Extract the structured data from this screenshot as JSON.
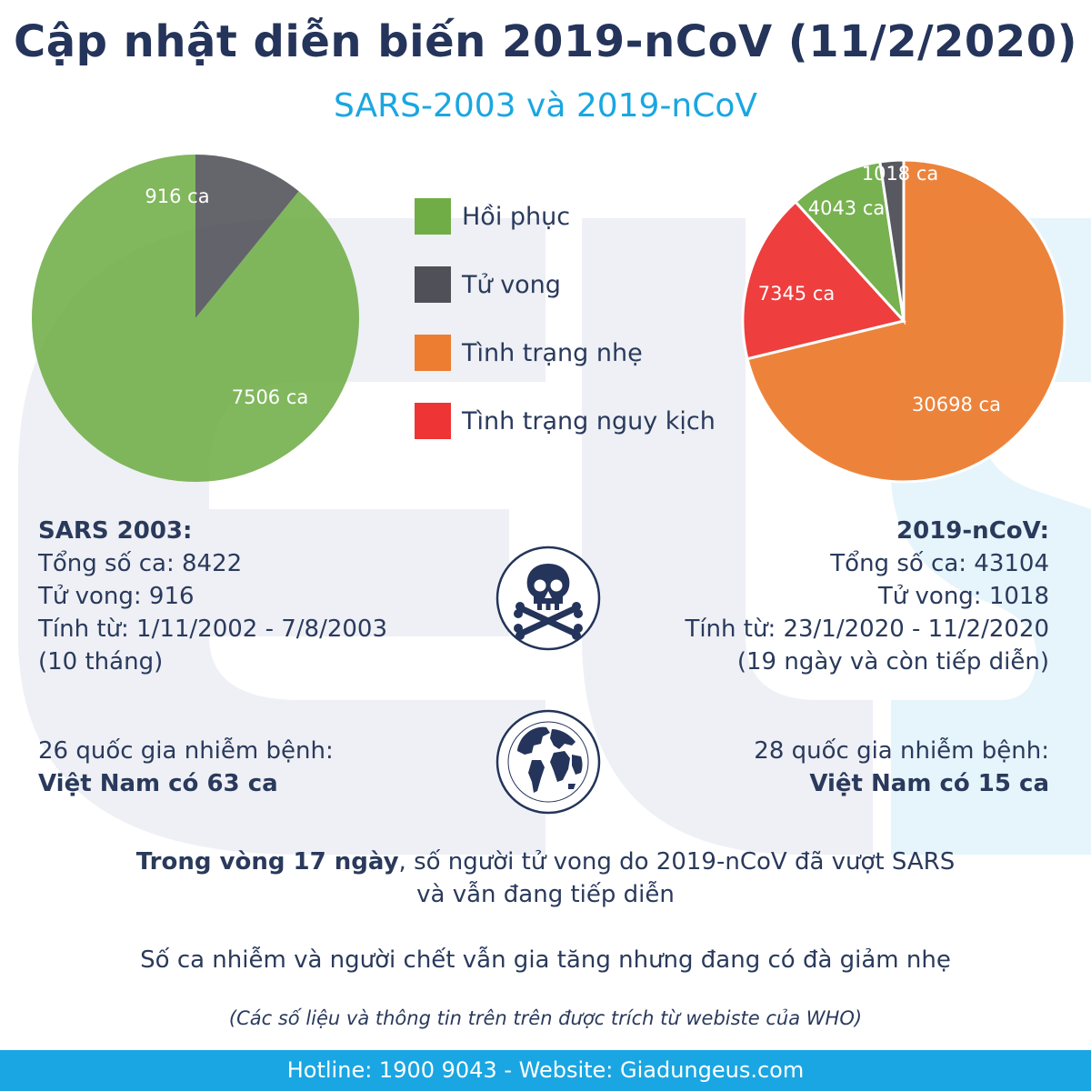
{
  "header": {
    "title": "Cập nhật diễn biến 2019-nCoV (11/2/2020)",
    "subtitle": "SARS-2003 và 2019-nCoV"
  },
  "legend": [
    {
      "label": "Hồi phục",
      "color": "#70ad47"
    },
    {
      "label": "Tử vong",
      "color": "#505058"
    },
    {
      "label": "Tình trạng nhẹ",
      "color": "#ed7d31"
    },
    {
      "label": "Tình trạng nguy kịch",
      "color": "#ee3434"
    }
  ],
  "chart_data": [
    {
      "type": "pie",
      "name": "SARS 2003",
      "slices": [
        {
          "label": "916 ca",
          "value": 916,
          "category": "Tử vong",
          "color": "#505058"
        },
        {
          "label": "7506 ca",
          "value": 7506,
          "category": "Hồi phục",
          "color": "#70ad47"
        }
      ]
    },
    {
      "type": "pie",
      "name": "2019-nCoV",
      "slices": [
        {
          "label": "30698 ca",
          "value": 30698,
          "category": "Tình trạng nhẹ",
          "color": "#ed7d31"
        },
        {
          "label": "7345 ca",
          "value": 7345,
          "category": "Tình trạng nguy kịch",
          "color": "#ee3434"
        },
        {
          "label": "4043 ca",
          "value": 4043,
          "category": "Hồi phục",
          "color": "#70ad47"
        },
        {
          "label": "1018 ca",
          "value": 1018,
          "category": "Tử vong",
          "color": "#505058"
        }
      ]
    }
  ],
  "sars": {
    "heading": "SARS 2003:",
    "total": "Tổng số ca: 8422",
    "deaths": "Tử vong: 916",
    "period": "Tính từ: 1/11/2002 - 7/8/2003",
    "duration": "(10 tháng)",
    "countries": "26 quốc gia nhiễm bệnh:",
    "vietnam": "Việt Nam có 63 ca"
  },
  "ncov": {
    "heading": "2019-nCoV:",
    "total": "Tổng số ca: 43104",
    "deaths": "Tử vong: 1018",
    "period": "Tính từ: 23/1/2020 - 11/2/2020",
    "duration": "(19 ngày và còn tiếp diễn)",
    "countries": "28 quốc gia nhiễm bệnh:",
    "vietnam": "Việt Nam có 15 ca"
  },
  "icons": {
    "skull": "skull-crossbones-icon",
    "globe": "globe-icon"
  },
  "notes": {
    "line1_bold": "Trong vòng 17 ngày",
    "line1_rest": ", số người tử vong do 2019-nCoV đã vượt SARS",
    "line2": "và vẫn đang tiếp diễn",
    "line3": "Số ca nhiễm và người chết vẫn gia tăng nhưng đang có đà giảm nhẹ",
    "source": "(Các số liệu và thông tin trên trên được trích từ webiste của WHO)"
  },
  "footer": {
    "text": "Hotline: 1900 9043 - Website: Giadungeus.com"
  }
}
